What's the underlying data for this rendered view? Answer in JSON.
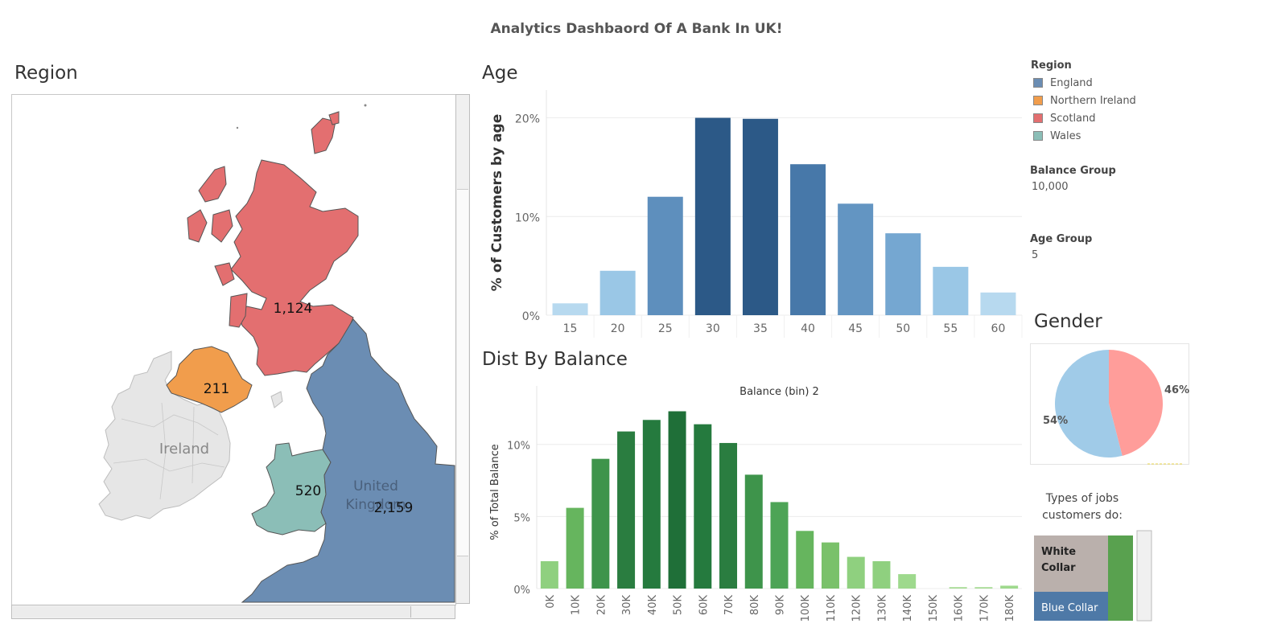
{
  "dashboard_title": "Analytics Dashbaord Of A Bank In UK!",
  "sections": {
    "region": "Region",
    "age": "Age",
    "balance": "Dist By Balance",
    "gender": "Gender"
  },
  "map": {
    "labels": {
      "scotland": "1,124",
      "northern_ireland": "211",
      "wales": "520",
      "england": "2,159"
    },
    "place_names": {
      "ireland": "Ireland",
      "uk_line1": "United",
      "uk_line2": "Kingdom"
    },
    "colors": {
      "england": "#6b8db3",
      "northern_ireland": "#f19d4c",
      "scotland": "#e36f70",
      "wales": "#8bbeb7",
      "ireland": "#e6e6e6"
    }
  },
  "legend": {
    "title": "Region",
    "items": [
      {
        "label": "England",
        "color": "#6b8db3"
      },
      {
        "label": "Northern Ireland",
        "color": "#f19d4c"
      },
      {
        "label": "Scotland",
        "color": "#e36f70"
      },
      {
        "label": "Wales",
        "color": "#8bbeb7"
      }
    ]
  },
  "filters": {
    "balance_group": {
      "label": "Balance Group",
      "value": "10,000"
    },
    "age_group": {
      "label": "Age Group",
      "value": "5"
    }
  },
  "jobs": {
    "title": "Types of jobs customers do:",
    "items": [
      {
        "label": "White Collar",
        "color": "#bab0ac"
      },
      {
        "label": "Blue Collar",
        "color": "#4e79a7"
      }
    ],
    "extra_color": "#59a14f"
  },
  "chart_data": [
    {
      "type": "bar",
      "id": "age",
      "ylabel": "% of Customers by age",
      "categories": [
        "15",
        "20",
        "25",
        "30",
        "35",
        "40",
        "45",
        "50",
        "55",
        "60"
      ],
      "values": [
        1.2,
        4.5,
        12.0,
        20.0,
        19.9,
        15.3,
        11.3,
        8.3,
        4.9,
        2.3
      ],
      "yticks": [
        "0%",
        "10%",
        "20%"
      ],
      "ylim": [
        0,
        22
      ],
      "grid": true,
      "colors": [
        "#b7d9ef",
        "#9ac7e6",
        "#5e8fbd",
        "#2c5987",
        "#2c5987",
        "#4778a9",
        "#6395c2",
        "#75a7d1",
        "#9ac7e6",
        "#b7d9ef"
      ]
    },
    {
      "type": "bar",
      "id": "balance",
      "title": "Balance (bin) 2",
      "ylabel": "% of Total Balance",
      "categories": [
        "0K",
        "10K",
        "20K",
        "30K",
        "40K",
        "50K",
        "60K",
        "70K",
        "80K",
        "90K",
        "100K",
        "110K",
        "120K",
        "130K",
        "140K",
        "150K",
        "160K",
        "170K",
        "180K"
      ],
      "values": [
        1.9,
        5.6,
        9.0,
        10.9,
        11.7,
        12.3,
        11.4,
        10.1,
        7.9,
        6.0,
        4.0,
        3.2,
        2.2,
        1.9,
        1.0,
        0.0,
        0.1,
        0.1,
        0.2
      ],
      "yticks": [
        "0%",
        "5%",
        "10%"
      ],
      "ylim": [
        0,
        13.5
      ],
      "grid": true,
      "colors": [
        "#8fd07f",
        "#66b55e",
        "#3e944b",
        "#2a7d40",
        "#257a3e",
        "#1f6f38",
        "#257a3e",
        "#2a7d40",
        "#3e944b",
        "#4da456",
        "#66b55e",
        "#7ac16a",
        "#8fd07f",
        "#8fd07f",
        "#9ed98d",
        "#a8dc96",
        "#a8dc96",
        "#a8dc96",
        "#9ed98d"
      ]
    },
    {
      "type": "pie",
      "id": "gender",
      "values": [
        54,
        46
      ],
      "labels": [
        "54%",
        "46%"
      ],
      "colors": [
        "#a0cbe8",
        "#ff9d9a"
      ]
    }
  ]
}
